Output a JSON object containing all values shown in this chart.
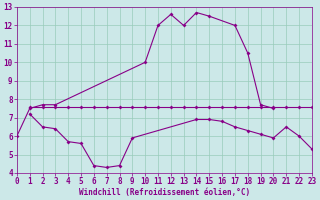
{
  "xlabel": "Windchill (Refroidissement éolien,°C)",
  "xlim": [
    0,
    23
  ],
  "ylim": [
    4,
    13
  ],
  "xticks": [
    0,
    1,
    2,
    3,
    4,
    5,
    6,
    7,
    8,
    9,
    10,
    11,
    12,
    13,
    14,
    15,
    16,
    17,
    18,
    19,
    20,
    21,
    22,
    23
  ],
  "yticks": [
    4,
    5,
    6,
    7,
    8,
    9,
    10,
    11,
    12,
    13
  ],
  "bg_color": "#cce8e8",
  "line_color": "#880088",
  "grid_color": "#99ccbb",
  "line1_x": [
    0,
    1,
    2,
    3,
    10,
    11,
    12,
    13,
    14,
    15,
    17,
    18,
    19,
    20
  ],
  "line1_y": [
    6.0,
    7.5,
    7.7,
    7.7,
    10.0,
    12.0,
    12.6,
    12.0,
    12.7,
    12.5,
    12.0,
    10.5,
    7.7,
    7.5
  ],
  "line2_x": [
    1,
    2,
    3,
    4,
    5,
    6,
    7,
    8,
    9,
    10,
    11,
    12,
    13,
    14,
    15,
    16,
    17,
    18,
    19,
    20,
    21,
    22,
    23
  ],
  "line2_y": [
    7.6,
    7.6,
    7.6,
    7.6,
    7.6,
    7.6,
    7.6,
    7.6,
    7.6,
    7.6,
    7.6,
    7.6,
    7.6,
    7.6,
    7.6,
    7.6,
    7.6,
    7.6,
    7.6,
    7.6,
    7.6,
    7.6,
    7.6
  ],
  "line3_x": [
    1,
    2,
    3,
    4,
    5,
    6,
    7,
    8,
    9,
    14,
    15,
    16,
    17,
    18,
    19,
    20,
    21,
    22,
    23
  ],
  "line3_y": [
    7.2,
    6.5,
    6.4,
    5.7,
    5.6,
    4.4,
    4.3,
    4.4,
    5.9,
    6.9,
    6.9,
    6.8,
    6.5,
    6.3,
    6.1,
    5.9,
    6.5,
    6.0,
    5.3
  ],
  "marker_size": 2.0,
  "line_width": 0.8,
  "tick_fontsize": 5.5,
  "xlabel_fontsize": 5.5
}
